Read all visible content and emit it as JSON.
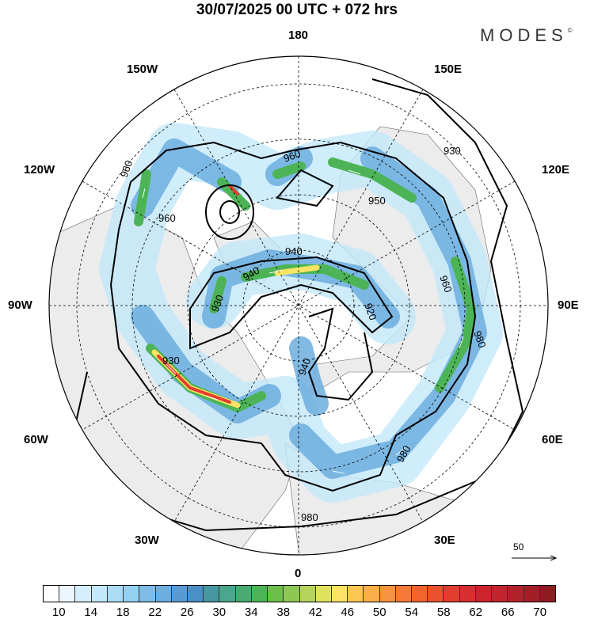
{
  "title": "30/07/2025  00 UTC  + 072 hrs",
  "logo": "MODES",
  "logo_mark": "©",
  "longitude_labels": {
    "top": "180",
    "top_left": "150W",
    "top_right": "150E",
    "upper_left": "120W",
    "upper_right": "120E",
    "left": "90W",
    "right": "90E",
    "lower_left": "60W",
    "lower_right": "60E",
    "bottom_left": "30W",
    "bottom_right": "30E",
    "bottom": "0"
  },
  "contour_labels": [
    "960",
    "930",
    "960",
    "940",
    "940",
    "920",
    "930",
    "980",
    "930",
    "940",
    "980",
    "980",
    "960",
    "950",
    "960"
  ],
  "reference_vector": {
    "label": "50"
  },
  "colorbar": {
    "colors": [
      "#ffffff",
      "#ebf7fd",
      "#d5eefb",
      "#c3e8fa",
      "#aadcf6",
      "#94d0f1",
      "#7fbde6",
      "#6daedf",
      "#5a9ad4",
      "#4b8fc7",
      "#4797a3",
      "#4aa68d",
      "#4aab72",
      "#4cb456",
      "#6bbf4a",
      "#8fc754",
      "#b6d45a",
      "#dfe25f",
      "#fbe363",
      "#fcc652",
      "#fbae48",
      "#f8933f",
      "#f67a35",
      "#f4622f",
      "#e9512f",
      "#e33d2f",
      "#d72f30",
      "#ce232d",
      "#c2252c",
      "#b3212a",
      "#a31f27",
      "#8f1b22"
    ],
    "tick_labels": [
      "10",
      "14",
      "18",
      "22",
      "26",
      "30",
      "34",
      "38",
      "42",
      "46",
      "50",
      "54",
      "58",
      "62",
      "66",
      "70"
    ]
  }
}
